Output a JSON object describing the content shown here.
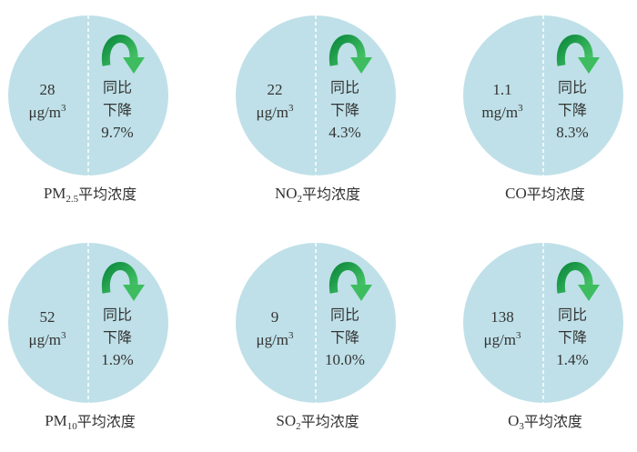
{
  "items": [
    {
      "value": "28",
      "unit": [
        "μg/m",
        "3"
      ],
      "change": [
        "同比",
        "下降",
        "9.7%"
      ],
      "label": [
        "PM",
        "2.5",
        "平均浓度"
      ]
    },
    {
      "value": "22",
      "unit": [
        "μg/m",
        "3"
      ],
      "change": [
        "同比",
        "下降",
        "4.3%"
      ],
      "label": [
        "NO",
        "2",
        "平均浓度"
      ]
    },
    {
      "value": "1.1",
      "unit": [
        "mg/m",
        "3"
      ],
      "change": [
        "同比",
        "下降",
        "8.3%"
      ],
      "label": [
        "CO",
        "平均浓度"
      ]
    },
    {
      "value": "52",
      "unit": [
        "μg/m",
        "3"
      ],
      "change": [
        "同比",
        "下降",
        "1.9%"
      ],
      "label": [
        "PM",
        "10",
        "平均浓度"
      ]
    },
    {
      "value": "9",
      "unit": [
        "μg/m",
        "3"
      ],
      "change": [
        "同比",
        "下降",
        "10.0%"
      ],
      "label": [
        "SO",
        "2",
        "平均浓度"
      ]
    },
    {
      "value": "138",
      "unit": [
        "μg/m",
        "3"
      ],
      "change": [
        "同比",
        "下降",
        "1.4%"
      ],
      "label": [
        "O",
        "3",
        "平均浓度"
      ]
    }
  ]
}
